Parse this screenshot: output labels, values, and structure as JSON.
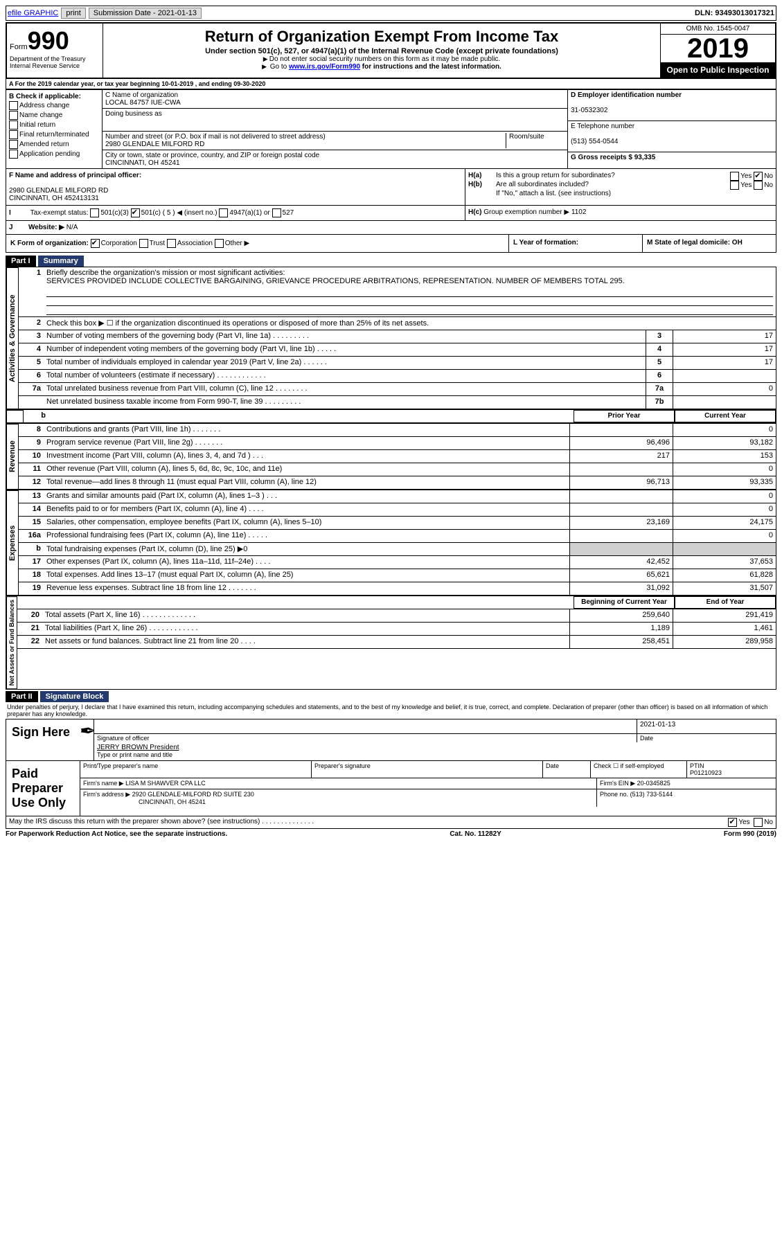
{
  "top_bar": {
    "efile": "efile GRAPHIC",
    "print": "print",
    "submission": "Submission Date - 2021-01-13",
    "dln": "DLN: 93493013017321"
  },
  "header": {
    "form_word": "Form",
    "form_num": "990",
    "dept": "Department of the Treasury Internal Revenue Service",
    "title": "Return of Organization Exempt From Income Tax",
    "subtitle": "Under section 501(c), 527, or 4947(a)(1) of the Internal Revenue Code (except private foundations)",
    "note1": "Do not enter social security numbers on this form as it may be made public.",
    "note2_prefix": "Go to ",
    "note2_link": "www.irs.gov/Form990",
    "note2_suffix": " for instructions and the latest information.",
    "omb": "OMB No. 1545-0047",
    "year": "2019",
    "inspect": "Open to Public Inspection"
  },
  "period": "For the 2019 calendar year, or tax year beginning 10-01-2019    , and ending 09-30-2020",
  "section_b": {
    "title": "B Check if applicable:",
    "items": [
      "Address change",
      "Name change",
      "Initial return",
      "Final return/terminated",
      "Amended return",
      "Application pending"
    ]
  },
  "section_c": {
    "name_label": "C Name of organization",
    "name": "LOCAL 84757 IUE-CWA",
    "dba_label": "Doing business as",
    "addr_label": "Number and street (or P.O. box if mail is not delivered to street address)",
    "room_label": "Room/suite",
    "addr": "2980 GLENDALE MILFORD RD",
    "city_label": "City or town, state or province, country, and ZIP or foreign postal code",
    "city": "CINCINNATI, OH  45241"
  },
  "section_d": {
    "ein_label": "D Employer identification number",
    "ein": "31-0532302",
    "phone_label": "E Telephone number",
    "phone": "(513) 554-0544",
    "gross_label": "G Gross receipts $ 93,335"
  },
  "section_f": {
    "label": "F  Name and address of principal officer:",
    "addr1": "2980 GLENDALE MILFORD RD",
    "addr2": "CINCINNATI, OH  452413131"
  },
  "section_h": {
    "a": "Is this a group return for subordinates?",
    "b": "Are all subordinates included?",
    "b_note": "If \"No,\" attach a list. (see instructions)",
    "c": "Group exemption number ▶   1102"
  },
  "tax_exempt": {
    "label": "Tax-exempt status:",
    "opt1": "501(c)(3)",
    "opt2": "501(c) ( 5 ) ◀ (insert no.)",
    "opt3": "4947(a)(1) or",
    "opt4": "527"
  },
  "website": {
    "label": "Website: ▶",
    "value": "N/A"
  },
  "section_k": {
    "label": "K Form of organization:",
    "opts": [
      "Corporation",
      "Trust",
      "Association",
      "Other ▶"
    ]
  },
  "section_l": "L Year of formation:",
  "section_m": "M State of legal domicile: OH",
  "part1": {
    "label": "Part I",
    "title": "Summary",
    "line1_label": "Briefly describe the organization's mission or most significant activities:",
    "line1_text": "SERVICES PROVIDED INCLUDE COLLECTIVE BARGAINING, GRIEVANCE PROCEDURE ARBITRATIONS, REPRESENTATION. NUMBER OF MEMBERS TOTAL 295.",
    "line2": "Check this box ▶ ☐  if the organization discontinued its operations or disposed of more than 25% of its net assets.",
    "lines_gov": [
      {
        "n": "3",
        "t": "Number of voting members of the governing body (Part VI, line 1a)   .   .   .   .   .   .   .   .   .",
        "box": "3",
        "v": "17"
      },
      {
        "n": "4",
        "t": "Number of independent voting members of the governing body (Part VI, line 1b)   .   .   .   .   .",
        "box": "4",
        "v": "17"
      },
      {
        "n": "5",
        "t": "Total number of individuals employed in calendar year 2019 (Part V, line 2a)   .   .   .   .   .   .",
        "box": "5",
        "v": "17"
      },
      {
        "n": "6",
        "t": "Total number of volunteers (estimate if necessary)   .   .   .   .   .   .   .   .   .   .   .   .",
        "box": "6",
        "v": ""
      },
      {
        "n": "7a",
        "t": "Total unrelated business revenue from Part VIII, column (C), line 12   .   .   .   .   .   .   .   .",
        "box": "7a",
        "v": "0"
      },
      {
        "n": "",
        "t": "Net unrelated business taxable income from Form 990-T, line 39   .   .   .   .   .   .   .   .   .",
        "box": "7b",
        "v": ""
      }
    ],
    "col_headers": {
      "prior": "Prior Year",
      "current": "Current Year"
    },
    "revenue": [
      {
        "n": "8",
        "t": "Contributions and grants (Part VIII, line 1h)   .   .   .   .   .   .   .",
        "p": "",
        "c": "0"
      },
      {
        "n": "9",
        "t": "Program service revenue (Part VIII, line 2g)   .   .   .   .   .   .   .",
        "p": "96,496",
        "c": "93,182"
      },
      {
        "n": "10",
        "t": "Investment income (Part VIII, column (A), lines 3, 4, and 7d )   .   .   .",
        "p": "217",
        "c": "153"
      },
      {
        "n": "11",
        "t": "Other revenue (Part VIII, column (A), lines 5, 6d, 8c, 9c, 10c, and 11e)",
        "p": "",
        "c": "0"
      },
      {
        "n": "12",
        "t": "Total revenue—add lines 8 through 11 (must equal Part VIII, column (A), line 12)",
        "p": "96,713",
        "c": "93,335"
      }
    ],
    "expenses": [
      {
        "n": "13",
        "t": "Grants and similar amounts paid (Part IX, column (A), lines 1–3 )   .   .   .",
        "p": "",
        "c": "0"
      },
      {
        "n": "14",
        "t": "Benefits paid to or for members (Part IX, column (A), line 4)   .   .   .   .",
        "p": "",
        "c": "0"
      },
      {
        "n": "15",
        "t": "Salaries, other compensation, employee benefits (Part IX, column (A), lines 5–10)",
        "p": "23,169",
        "c": "24,175"
      },
      {
        "n": "16a",
        "t": "Professional fundraising fees (Part IX, column (A), line 11e)   .   .   .   .   .",
        "p": "",
        "c": "0"
      },
      {
        "n": "b",
        "t": "Total fundraising expenses (Part IX, column (D), line 25) ▶0",
        "p": "gray",
        "c": "gray"
      },
      {
        "n": "17",
        "t": "Other expenses (Part IX, column (A), lines 11a–11d, 11f–24e)   .   .   .   .",
        "p": "42,452",
        "c": "37,653"
      },
      {
        "n": "18",
        "t": "Total expenses. Add lines 13–17 (must equal Part IX, column (A), line 25)",
        "p": "65,621",
        "c": "61,828"
      },
      {
        "n": "19",
        "t": "Revenue less expenses. Subtract line 18 from line 12   .   .   .   .   .   .   .",
        "p": "31,092",
        "c": "31,507"
      }
    ],
    "net_headers": {
      "begin": "Beginning of Current Year",
      "end": "End of Year"
    },
    "net": [
      {
        "n": "20",
        "t": "Total assets (Part X, line 16)   .   .   .   .   .   .   .   .   .   .   .   .   .",
        "p": "259,640",
        "c": "291,419"
      },
      {
        "n": "21",
        "t": "Total liabilities (Part X, line 26)   .   .   .   .   .   .   .   .   .   .   .   .",
        "p": "1,189",
        "c": "1,461"
      },
      {
        "n": "22",
        "t": "Net assets or fund balances. Subtract line 21 from line 20   .   .   .   .",
        "p": "258,451",
        "c": "289,958"
      }
    ]
  },
  "side_labels": {
    "gov": "Activities & Governance",
    "rev": "Revenue",
    "exp": "Expenses",
    "net": "Net Assets or Fund Balances"
  },
  "part2": {
    "label": "Part II",
    "title": "Signature Block",
    "declaration": "Under penalties of perjury, I declare that I have examined this return, including accompanying schedules and statements, and to the best of my knowledge and belief, it is true, correct, and complete. Declaration of preparer (other than officer) is based on all information of which preparer has any knowledge."
  },
  "sign_here": {
    "label": "Sign Here",
    "sig_label": "Signature of officer",
    "date": "2021-01-13",
    "date_label": "Date",
    "name": "JERRY BROWN President",
    "name_label": "Type or print name and title"
  },
  "paid_prep": {
    "label": "Paid Preparer Use Only",
    "print_label": "Print/Type preparer's name",
    "sig_label": "Preparer's signature",
    "date_label": "Date",
    "check_label": "Check ☐ if self-employed",
    "ptin_label": "PTIN",
    "ptin": "P01210923",
    "firm_name_label": "Firm's name   ▶",
    "firm_name": "LISA M SHAWVER CPA LLC",
    "firm_ein_label": "Firm's EIN ▶",
    "firm_ein": "20-0345825",
    "firm_addr_label": "Firm's address ▶",
    "firm_addr1": "2920 GLENDALE-MILFORD RD SUITE 230",
    "firm_addr2": "CINCINNATI, OH  45241",
    "phone_label": "Phone no.",
    "phone": "(513) 733-5144"
  },
  "discuss": "May the IRS discuss this return with the preparer shown above? (see instructions)   .   .   .   .   .   .   .   .   .   .   .   .   .   .",
  "footer": {
    "left": "For Paperwork Reduction Act Notice, see the separate instructions.",
    "center": "Cat. No. 11282Y",
    "right": "Form 990 (2019)"
  }
}
